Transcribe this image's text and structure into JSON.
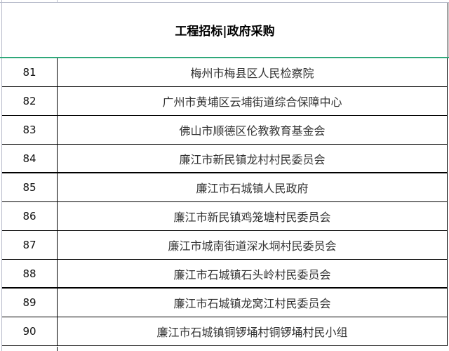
{
  "header": {
    "title": "工程招标|政府采购"
  },
  "rows": [
    {
      "no": "81",
      "name": "梅州市梅县区人民检察院"
    },
    {
      "no": "82",
      "name": "广州市黄埔区云埔街道综合保障中心"
    },
    {
      "no": "83",
      "name": "佛山市顺德区伦教教育基金会"
    },
    {
      "no": "84",
      "name": "廉江市新民镇龙村村民委员会"
    },
    {
      "no": "85",
      "name": "廉江市石城镇人民政府"
    },
    {
      "no": "86",
      "name": "廉江市新民镇鸡笼塘村民委员会"
    },
    {
      "no": "87",
      "name": "廉江市城南街道深水垌村民委员会"
    },
    {
      "no": "88",
      "name": "廉江市石城镇石头岭村民委员会"
    },
    {
      "no": "89",
      "name": "廉江市石城镇龙窝江村民委员会"
    },
    {
      "no": "90",
      "name": "廉江市石城镇铜锣埇村铜锣埇村民小组"
    }
  ]
}
